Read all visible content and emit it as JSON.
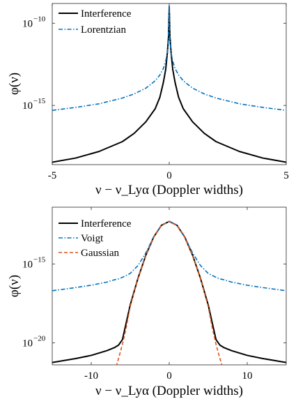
{
  "chart_data": [
    {
      "type": "line",
      "title": "",
      "xlabel": "ν − ν_Lyα (Doppler widths)",
      "ylabel": "φ(ν)",
      "yscale": "log",
      "xlim": [
        -5,
        5
      ],
      "ylim_log10": [
        -18.6,
        -8.8
      ],
      "xticks": [
        -5,
        0,
        5
      ],
      "xtick_labels": [
        "-5",
        "0",
        "5"
      ],
      "yticks_log10": [
        -10,
        -15
      ],
      "ytick_labels": [
        "10",
        "10"
      ],
      "ytick_exponents": [
        "−10",
        "−15"
      ],
      "grid": false,
      "legend": "top-left",
      "x": [
        -5,
        -4,
        -3,
        -2,
        -1.5,
        -1,
        -0.6,
        -0.4,
        -0.25,
        -0.15,
        -0.08,
        -0.03,
        0,
        0.03,
        0.08,
        0.15,
        0.25,
        0.4,
        0.6,
        1,
        1.5,
        2,
        3,
        4,
        5
      ],
      "series": [
        {
          "name": "Interference",
          "color": "#000000",
          "dash": "solid",
          "log10_values": [
            -18.45,
            -18.2,
            -17.8,
            -17.2,
            -16.7,
            -16.0,
            -15.2,
            -14.5,
            -13.6,
            -12.8,
            -11.8,
            -10.8,
            -9.0,
            -10.8,
            -11.8,
            -12.8,
            -13.6,
            -14.5,
            -15.2,
            -16.0,
            -16.7,
            -17.2,
            -17.8,
            -18.2,
            -18.45
          ]
        },
        {
          "name": "Lorentzian",
          "color": "#0072BD",
          "dash": "dashdot",
          "log10_values": [
            -15.3,
            -15.12,
            -14.9,
            -14.55,
            -14.3,
            -13.95,
            -13.5,
            -13.15,
            -12.75,
            -12.3,
            -11.8,
            -11.0,
            -8.9,
            -11.0,
            -11.8,
            -12.3,
            -12.75,
            -13.15,
            -13.5,
            -13.95,
            -14.3,
            -14.55,
            -14.9,
            -15.12,
            -15.3
          ]
        }
      ]
    },
    {
      "type": "line",
      "title": "",
      "xlabel": "ν − ν_Lyα (Doppler widths)",
      "ylabel": "φ(ν)",
      "yscale": "log",
      "xlim": [
        -15,
        15
      ],
      "ylim_log10": [
        -21.4,
        -11.4
      ],
      "xticks": [
        -10,
        0,
        10
      ],
      "xtick_labels": [
        "-10",
        "0",
        "10"
      ],
      "yticks_log10": [
        -15,
        -20
      ],
      "ytick_labels": [
        "10",
        "10"
      ],
      "ytick_exponents": [
        "−15",
        "−20"
      ],
      "grid": false,
      "legend": "top-left",
      "x": [
        -15,
        -12,
        -10,
        -8,
        -7,
        -6.5,
        -6,
        -5,
        -4,
        -3,
        -2,
        -1,
        0,
        1,
        2,
        3,
        4,
        5,
        6,
        6.5,
        7,
        8,
        10,
        12,
        15
      ],
      "series": [
        {
          "name": "Interference",
          "color": "#000000",
          "dash": "solid",
          "log10_values": [
            -21.25,
            -21.0,
            -20.8,
            -20.5,
            -20.3,
            -20.15,
            -19.8,
            -17.6,
            -15.9,
            -14.45,
            -13.3,
            -12.55,
            -12.3,
            -12.55,
            -13.3,
            -14.45,
            -15.9,
            -17.6,
            -19.8,
            -20.15,
            -20.3,
            -20.5,
            -20.8,
            -21.0,
            -21.25
          ]
        },
        {
          "name": "Voigt",
          "color": "#0072BD",
          "dash": "dashdot",
          "log10_values": [
            -16.7,
            -16.5,
            -16.35,
            -16.15,
            -16.0,
            -15.95,
            -15.85,
            -15.6,
            -15.1,
            -14.3,
            -13.3,
            -12.55,
            -12.3,
            -12.55,
            -13.3,
            -14.3,
            -15.1,
            -15.6,
            -15.85,
            -15.95,
            -16.0,
            -16.15,
            -16.35,
            -16.5,
            -16.7
          ]
        },
        {
          "name": "Gaussian",
          "color": "#D95319",
          "dash": "dashed",
          "x": [
            -6.8,
            -6.5,
            -6,
            -5.5,
            -5,
            -4,
            -3,
            -2,
            -1,
            0,
            1,
            2,
            3,
            4,
            5,
            5.5,
            6,
            6.5,
            6.8
          ],
          "log10_values": [
            -21.5,
            -21.0,
            -20.1,
            -19.0,
            -17.7,
            -15.9,
            -14.45,
            -13.3,
            -12.55,
            -12.3,
            -12.55,
            -13.3,
            -14.45,
            -15.9,
            -17.7,
            -19.0,
            -20.1,
            -21.0,
            -21.5
          ]
        }
      ]
    }
  ]
}
